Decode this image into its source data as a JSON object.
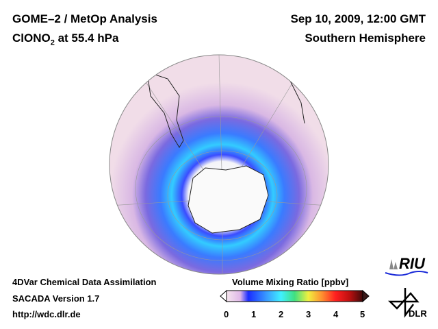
{
  "header": {
    "line1": "GOME–2 / MetOp Analysis",
    "species": "ClONO",
    "species_sub": "2",
    "level": " at 55.4 hPa",
    "date": "Sep 10, 2009, 12:00 GMT",
    "region": "Southern Hemisphere"
  },
  "footer": {
    "line1": "4DVar Chemical Data Assimilation",
    "line2": "SACADA Version 1.7",
    "line3": "http://wdc.dlr.de"
  },
  "colorbar": {
    "title": "Volume Mixing Ratio [ppbv]",
    "ticks": [
      "0",
      "1",
      "2",
      "3",
      "4",
      "5"
    ],
    "range": [
      0,
      5
    ]
  },
  "logos": {
    "riu": "RIU",
    "dlr": "DLR"
  }
}
